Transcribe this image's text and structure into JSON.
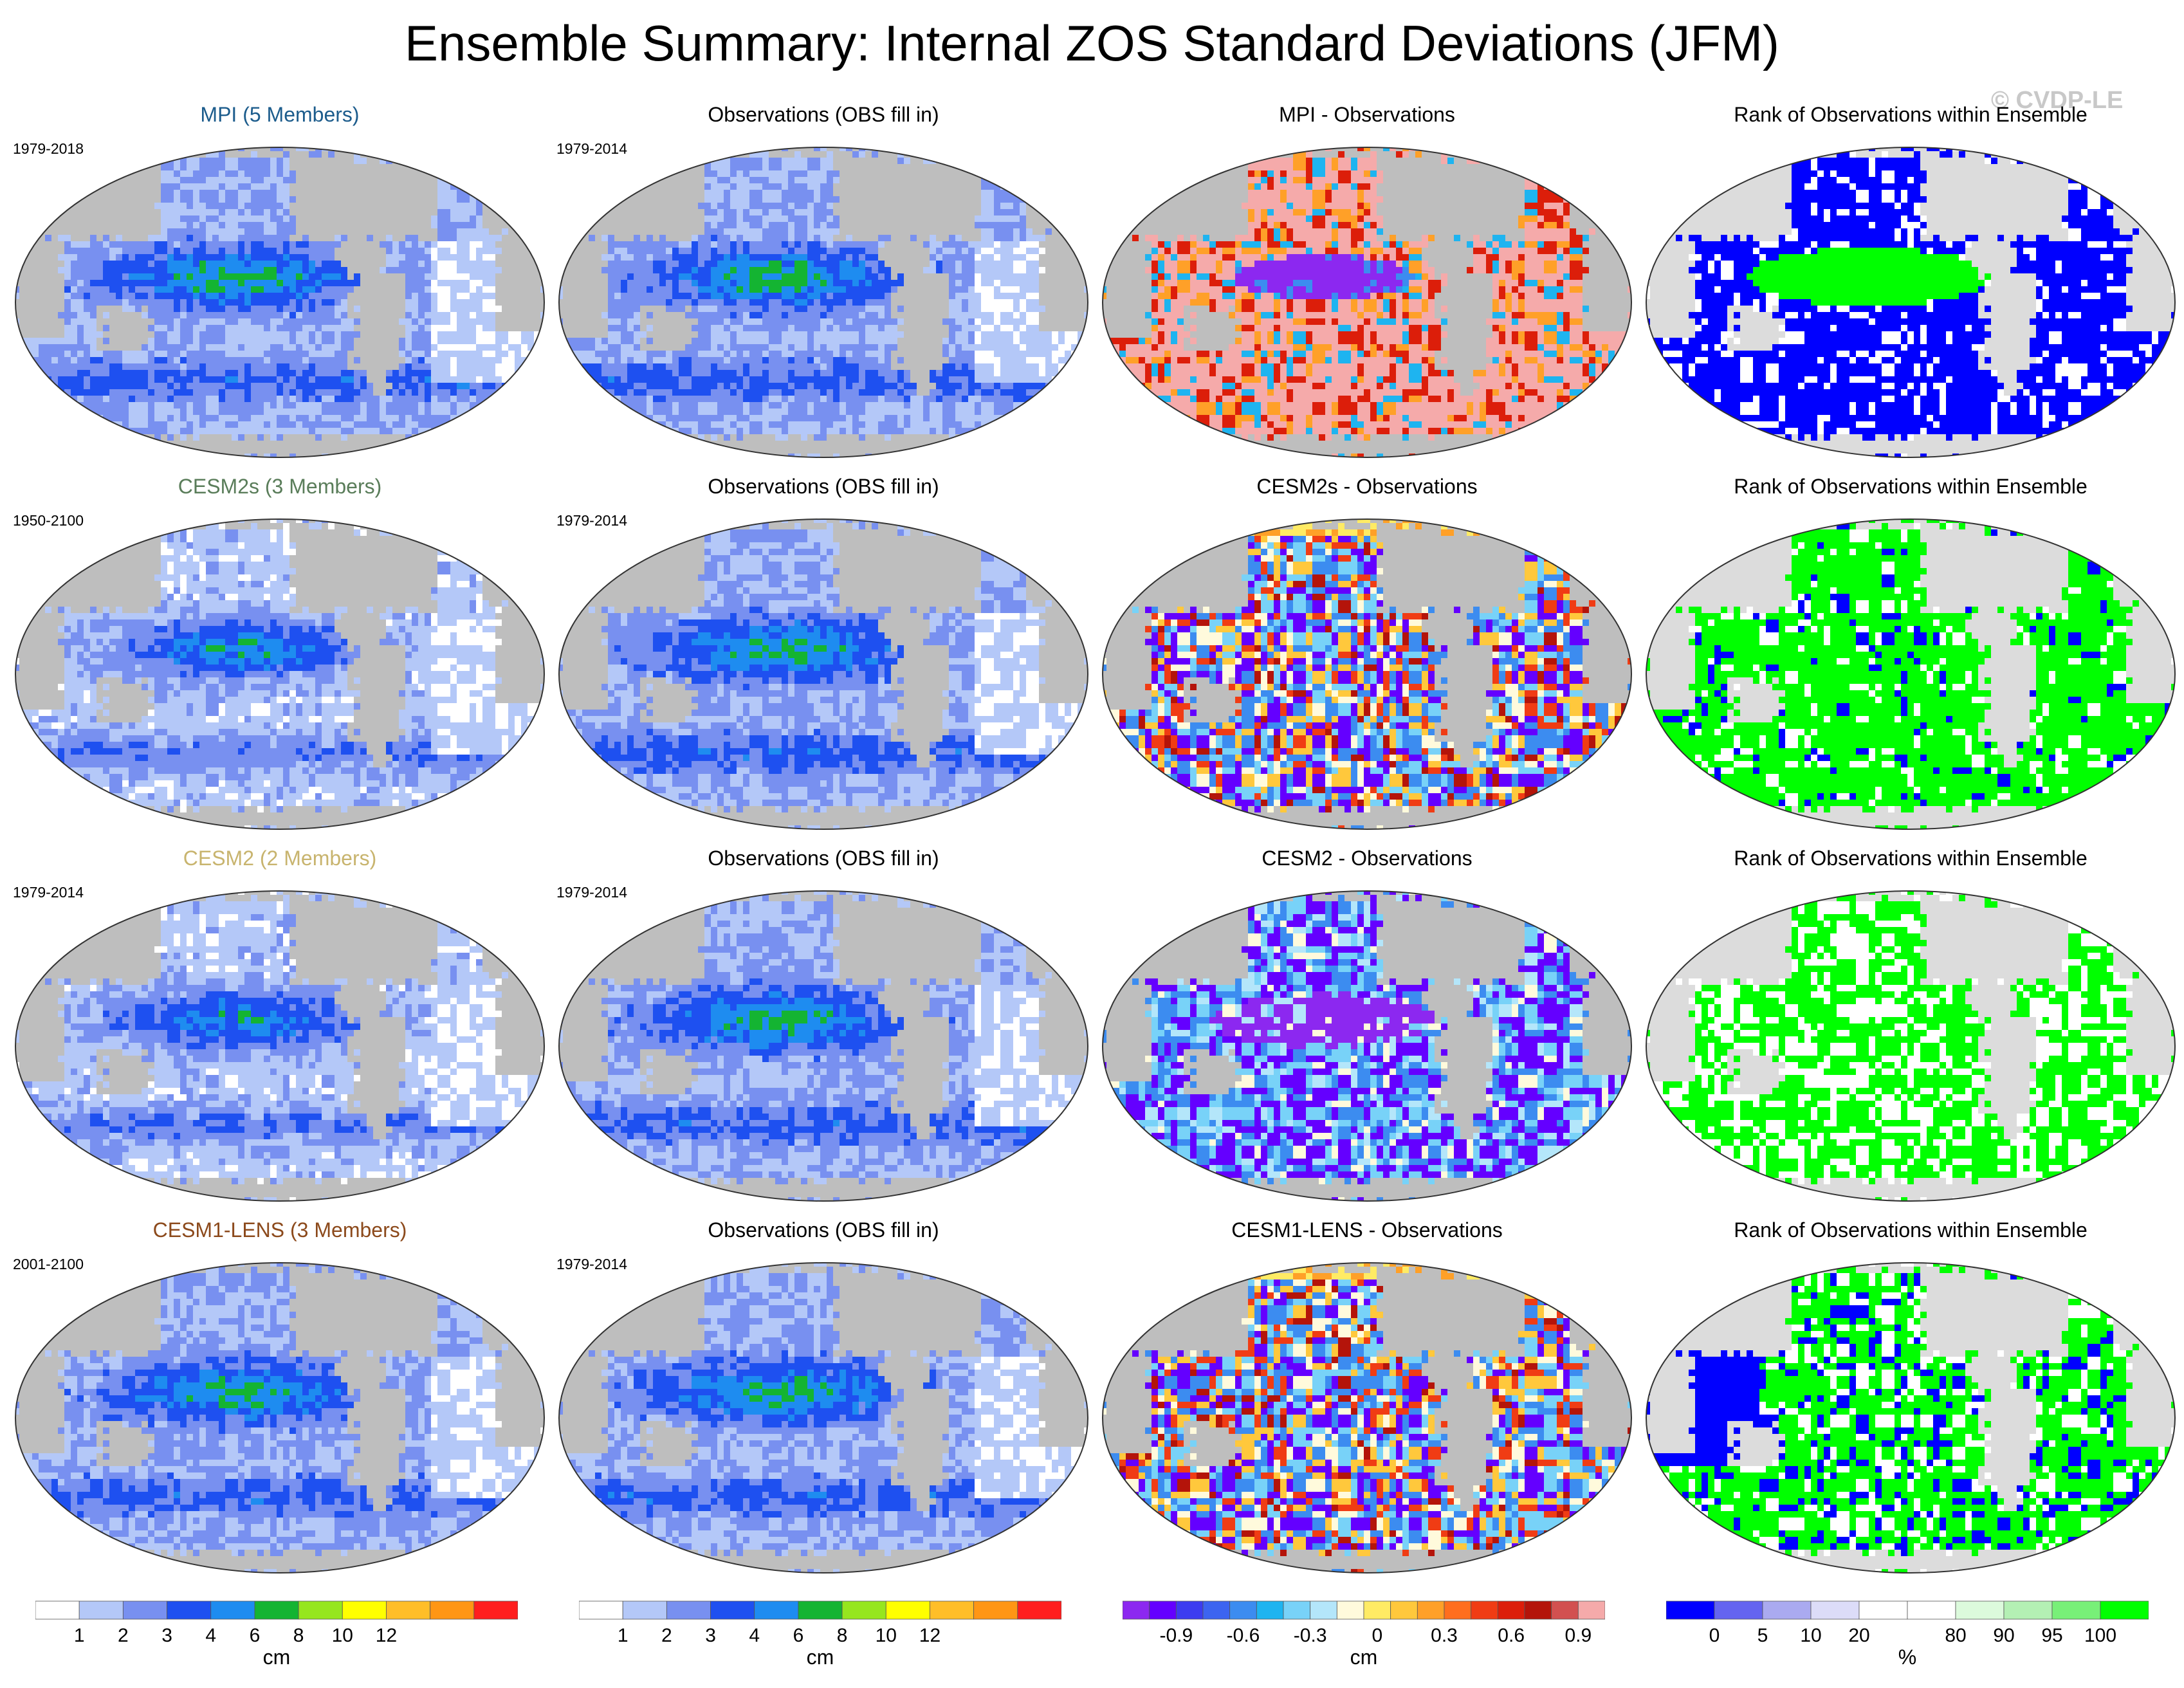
{
  "title": "Ensemble Summary: Internal ZOS Standard Deviations (JFM)",
  "watermark": "© CVDP-LE",
  "rows": [
    {
      "model": {
        "title": "MPI (5 Members)",
        "title_color": "#1c5c8c",
        "period": "1979-2018",
        "scheme": "sd"
      },
      "obs": {
        "title": "Observations (OBS fill in)",
        "period": "1979-2014",
        "scheme": "sd"
      },
      "diff": {
        "title": "MPI - Observations",
        "scheme": "diff_warm"
      },
      "rank": {
        "title": "Rank of Observations within Ensemble",
        "scheme": "rank_blue"
      }
    },
    {
      "model": {
        "title": "CESM2s (3 Members)",
        "title_color": "#5a7d5a",
        "period": "1950-2100",
        "scheme": "sd_low"
      },
      "obs": {
        "title": "Observations (OBS fill in)",
        "period": "1979-2014",
        "scheme": "sd"
      },
      "diff": {
        "title": "CESM2s - Observations",
        "scheme": "diff_mixed"
      },
      "rank": {
        "title": "Rank of Observations within Ensemble",
        "scheme": "rank_green"
      }
    },
    {
      "model": {
        "title": "CESM2 (2 Members)",
        "title_color": "#c8b46e",
        "period": "1979-2014",
        "scheme": "sd_low"
      },
      "obs": {
        "title": "Observations (OBS fill in)",
        "period": "1979-2014",
        "scheme": "sd"
      },
      "diff": {
        "title": "CESM2 - Observations",
        "scheme": "diff_cool"
      },
      "rank": {
        "title": "Rank of Observations within Ensemble",
        "scheme": "rank_speckle"
      }
    },
    {
      "model": {
        "title": "CESM1-LENS (3 Members)",
        "title_color": "#8c4a1c",
        "period": "2001-2100",
        "scheme": "sd"
      },
      "obs": {
        "title": "Observations (OBS fill in)",
        "period": "1979-2014",
        "scheme": "sd"
      },
      "diff": {
        "title": "CESM1-LENS - Observations",
        "scheme": "diff_mixed"
      },
      "rank": {
        "title": "Rank of Observations within Ensemble",
        "scheme": "rank_mixed"
      }
    }
  ],
  "colorbars": [
    {
      "unit": "cm",
      "colors": [
        "#ffffff",
        "#b4c8f8",
        "#7890f0",
        "#1e50f0",
        "#1e8cf0",
        "#14b432",
        "#96e61e",
        "#ffff00",
        "#ffbe28",
        "#ff9614",
        "#ff1e1e"
      ],
      "labels": [
        "1",
        "2",
        "3",
        "4",
        "6",
        "8",
        "10",
        "12"
      ]
    },
    {
      "unit": "cm",
      "colors": [
        "#ffffff",
        "#b4c8f8",
        "#7890f0",
        "#1e50f0",
        "#1e8cf0",
        "#14b432",
        "#96e61e",
        "#ffff00",
        "#ffbe28",
        "#ff9614",
        "#ff1e1e"
      ],
      "labels": [
        "1",
        "2",
        "3",
        "4",
        "6",
        "8",
        "10",
        "12"
      ]
    },
    {
      "unit": "cm",
      "colors": [
        "#8c28f0",
        "#6400ff",
        "#3c3cf0",
        "#3c64f0",
        "#3c8cf0",
        "#1eb4f0",
        "#78d2f8",
        "#b4e6fa",
        "#fffadc",
        "#ffeb64",
        "#ffc83c",
        "#ffa028",
        "#ff6e1e",
        "#f03c14",
        "#dc1e0a",
        "#b4140a",
        "#d25050",
        "#f5aaaa"
      ],
      "labels": [
        "-0.9",
        "-0.6",
        "-0.3",
        "0",
        "0.3",
        "0.6",
        "0.9"
      ]
    },
    {
      "unit": "%",
      "colors": [
        "#0000ff",
        "#6464f0",
        "#aaaaf0",
        "#dcdcf8",
        "#ffffff",
        "#ffffff",
        "#dcfadc",
        "#b4f0b4",
        "#78f078",
        "#00ff00"
      ],
      "labels": [
        "0",
        "5",
        "10",
        "20",
        "80",
        "90",
        "95",
        "100"
      ]
    }
  ]
}
